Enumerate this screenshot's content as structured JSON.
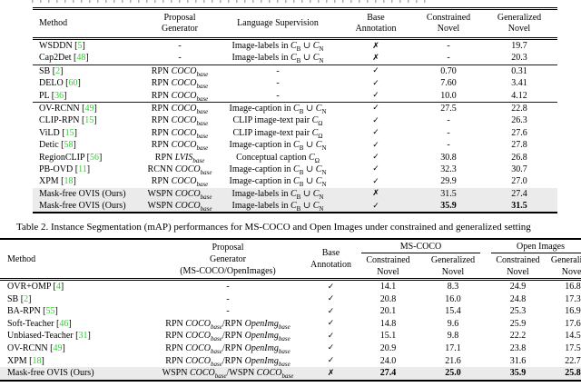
{
  "glyphs": {
    "check": "✓",
    "cross": "✗"
  },
  "colors": {
    "cite_green": "#32cd32",
    "highlight_row": "#ebebeb",
    "rule": "#000000"
  },
  "table1": {
    "columns": {
      "method": "Method",
      "proposal": [
        "Proposal",
        "Generator"
      ],
      "supervision": "Language Supervision",
      "base": [
        "Base",
        "Annotation"
      ],
      "constrained": [
        "Constrained",
        "Novel"
      ],
      "generalized": [
        "Generalized",
        "Novel"
      ]
    },
    "rows": [
      {
        "method": "WSDDN",
        "cite": "5",
        "proposal": "-",
        "supervision": "Image-labels in $C$_{B} ∪ $C$_{N}",
        "base": "cross",
        "constrained": "-",
        "generalized": "19.7"
      },
      {
        "method": "Cap2Det",
        "cite": "48",
        "proposal": "-",
        "supervision": "Image-labels in $C$_{B} ∪ $C$_{N}",
        "base": "cross",
        "constrained": "-",
        "generalized": "20.3"
      },
      {
        "method": "SB",
        "cite": "2",
        "proposal": "RPN $COCO_{base}$",
        "supervision": "-",
        "base": "check",
        "constrained": "0.70",
        "generalized": "0.31",
        "rule_above": true
      },
      {
        "method": "DELO",
        "cite": "60",
        "proposal": "RPN $COCO_{base}$",
        "supervision": "-",
        "base": "check",
        "constrained": "7.60",
        "generalized": "3.41"
      },
      {
        "method": "PL",
        "cite": "36",
        "proposal": "RPN $COCO_{base}$",
        "supervision": "-",
        "base": "check",
        "constrained": "10.0",
        "generalized": "4.12"
      },
      {
        "method": "OV-RCNN",
        "cite": "49",
        "proposal": "RPN $COCO_{base}$",
        "supervision": "Image-caption in $C$_{B} ∪ $C$_{N}",
        "base": "check",
        "constrained": "27.5",
        "generalized": "22.8",
        "rule_above": true
      },
      {
        "method": "CLIP-RPN",
        "cite": "15",
        "proposal": "RPN $COCO_{base}$",
        "supervision": "CLIP image-text pair $C$_{Ω}",
        "base": "check",
        "constrained": "-",
        "generalized": "26.3"
      },
      {
        "method": "ViLD",
        "cite": "15",
        "proposal": "RPN $COCO_{base}$",
        "supervision": "CLIP image-text pair $C$_{Ω}",
        "base": "check",
        "constrained": "-",
        "generalized": "27.6"
      },
      {
        "method": "Detic",
        "cite": "58",
        "proposal": "RPN $COCO_{base}$",
        "supervision": "Image-caption in $C$_{B} ∪ $C$_{N}",
        "base": "check",
        "constrained": "-",
        "generalized": "27.8"
      },
      {
        "method": "RegionCLIP",
        "cite": "56",
        "proposal": "RPN $LVIS_{base}$",
        "supervision": "Conceptual caption $C$_{Ω}",
        "base": "check",
        "constrained": "30.8",
        "generalized": "26.8"
      },
      {
        "method": "PB-OVD",
        "cite": "11",
        "proposal": "RCNN $COCO_{base}$",
        "supervision": "Image-caption in $C$_{B} ∪ $C$_{N}",
        "base": "check",
        "constrained": "32.3",
        "generalized": "30.7"
      },
      {
        "method": "XPM",
        "cite": "18",
        "proposal": "RPN $COCO_{base}$",
        "supervision": "Image-caption in $C$_{B} ∪ $C$_{N}",
        "base": "check",
        "constrained": "29.9",
        "generalized": "27.0"
      },
      {
        "method": "Mask-free OVIS (Ours)",
        "proposal": "WSPN $COCO_{base}$",
        "supervision": "Image-labels in $C$_{B} ∪ $C$_{N}",
        "base": "cross",
        "constrained": "31.5",
        "generalized": "27.4",
        "highlight": true
      },
      {
        "method": "Mask-free OVIS (Ours)",
        "proposal": "WSPN $COCO_{base}$",
        "supervision": "Image-labels in $C$_{B} ∪ $C$_{N}",
        "base": "check",
        "constrained": "35.9",
        "generalized": "31.5",
        "highlight": true,
        "bold_values": true
      }
    ]
  },
  "table2": {
    "caption": "Table 2. Instance Segmentation (mAP) performances for MS-COCO and Open Images under constrained and generalized setting",
    "columns": {
      "method": "Method",
      "proposal": [
        "Proposal",
        "Generator",
        "(MS-COCO/OpenImages)"
      ],
      "base": [
        "Base",
        "Annotation"
      ]
    },
    "groups": [
      {
        "label": "MS-COCO",
        "cols": [
          [
            "Constrained",
            "Novel"
          ],
          [
            "Generalized",
            "Novel"
          ]
        ]
      },
      {
        "label": "Open Images",
        "cols": [
          [
            "Constrained",
            "Novel"
          ],
          [
            "Generalized",
            "Novel"
          ]
        ]
      }
    ],
    "rows": [
      {
        "method": "OVR+OMP",
        "cite": "4",
        "proposal": "-",
        "base": "check",
        "values": [
          "14.1",
          "8.3",
          "24.9",
          "16.8"
        ]
      },
      {
        "method": "SB",
        "cite": "2",
        "proposal": "-",
        "base": "check",
        "values": [
          "20.8",
          "16.0",
          "24.8",
          "17.3"
        ]
      },
      {
        "method": "BA-RPN",
        "cite": "55",
        "proposal": "-",
        "base": "check",
        "values": [
          "20.1",
          "15.4",
          "25.3",
          "16.9"
        ]
      },
      {
        "method": "Soft-Teacher",
        "cite": "46",
        "proposal": "RPN $COCO_{base}$/RPN $OpenImg_{base}$",
        "base": "check",
        "values": [
          "14.8",
          "9.6",
          "25.9",
          "17.6"
        ]
      },
      {
        "method": "Unbiased-Teacher",
        "cite": "31",
        "proposal": "RPN $COCO_{base}$/RPN $OpenImg_{base}$",
        "base": "check",
        "values": [
          "15.1",
          "9.8",
          "22.2",
          "14.5"
        ]
      },
      {
        "method": "OV-RCNN",
        "cite": "49",
        "proposal": "RPN $COCO_{base}$/RPN $OpenImg_{base}$",
        "base": "check",
        "values": [
          "20.9",
          "17.1",
          "23.8",
          "17.5"
        ]
      },
      {
        "method": "XPM",
        "cite": "18",
        "proposal": "RPN $COCO_{base}$/RPN $OpenImg_{base}$",
        "base": "check",
        "values": [
          "24.0",
          "21.6",
          "31.6",
          "22.7"
        ]
      },
      {
        "method": "Mask-free OVIS (Ours)",
        "proposal": "WSPN $COCO_{base}$/WSPN $COCO_{base}$",
        "base": "cross",
        "values": [
          "27.4",
          "25.0",
          "35.9",
          "25.8"
        ],
        "highlight": true,
        "bold_values": true
      }
    ]
  }
}
